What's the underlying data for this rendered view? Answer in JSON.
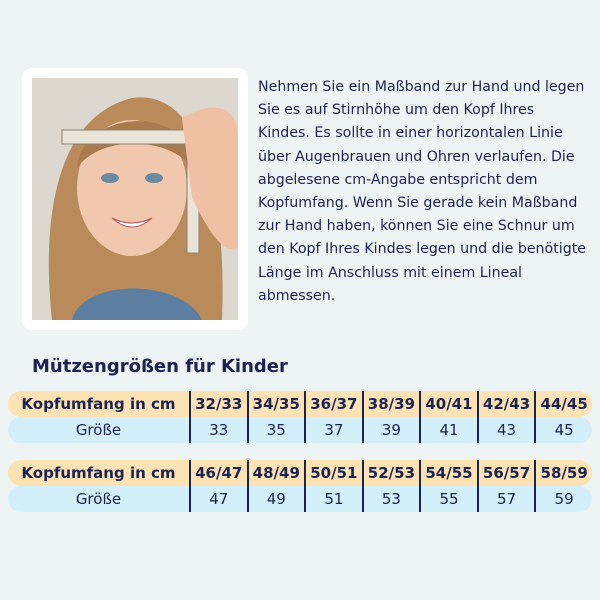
{
  "instructions": "Nehmen Sie ein Maßband zur Hand und legen Sie es auf Stirnhöhe um den Kopf Ihres Kindes. Es sollte in einer horizontalen Linie über Augenbrauen und Ohren verlaufen. Die abgelesene cm-Angabe entspricht dem Kopfumfang. Wenn Sie gerade kein Maßband zur Hand haben, können Sie eine Schnur um den Kopf Ihres Kindes legen und die benötigte Länge im Anschluss mit einem Lineal abmessen.",
  "heading": "Mützengrößen für Kinder",
  "colors": {
    "header_row": "#fde2b3",
    "size_row": "#d3eff9",
    "text": "#1b2352",
    "background": "#eef3f4"
  },
  "tables": [
    {
      "row_label": "Kopfumfang in cm",
      "size_label": "Größe",
      "circumference": [
        "32/33",
        "34/35",
        "36/37",
        "38/39",
        "40/41",
        "42/43",
        "44/45"
      ],
      "sizes": [
        "33",
        "35",
        "37",
        "39",
        "41",
        "43",
        "45"
      ]
    },
    {
      "row_label": "Kopfumfang in cm",
      "size_label": "Größe",
      "circumference": [
        "46/47",
        "48/49",
        "50/51",
        "52/53",
        "54/55",
        "56/57",
        "58/59"
      ],
      "sizes": [
        "47",
        "49",
        "51",
        "53",
        "55",
        "57",
        "59"
      ]
    }
  ]
}
